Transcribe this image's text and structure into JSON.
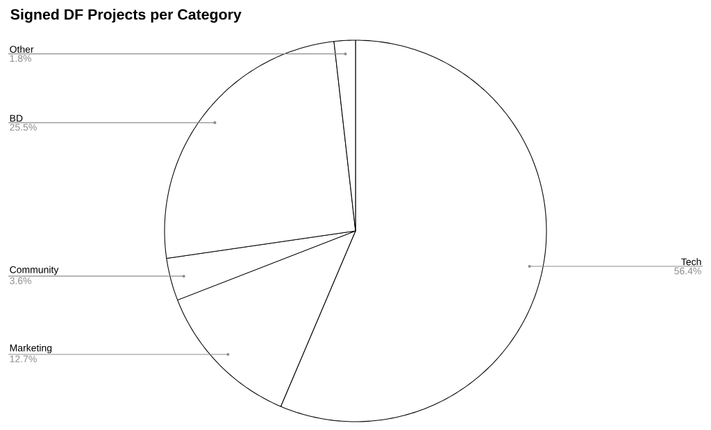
{
  "chart_data": {
    "type": "pie",
    "title": "Signed DF Projects per Category",
    "categories": [
      "Tech",
      "Marketing",
      "Community",
      "BD",
      "Other"
    ],
    "values": [
      56.4,
      12.7,
      3.6,
      25.5,
      1.8
    ],
    "value_labels": [
      "56.4%",
      "12.7%",
      "3.6%",
      "25.5%",
      "1.8%"
    ],
    "colors": [
      "#ffffff",
      "#ffffff",
      "#ffffff",
      "#ffffff",
      "#ffffff"
    ]
  }
}
